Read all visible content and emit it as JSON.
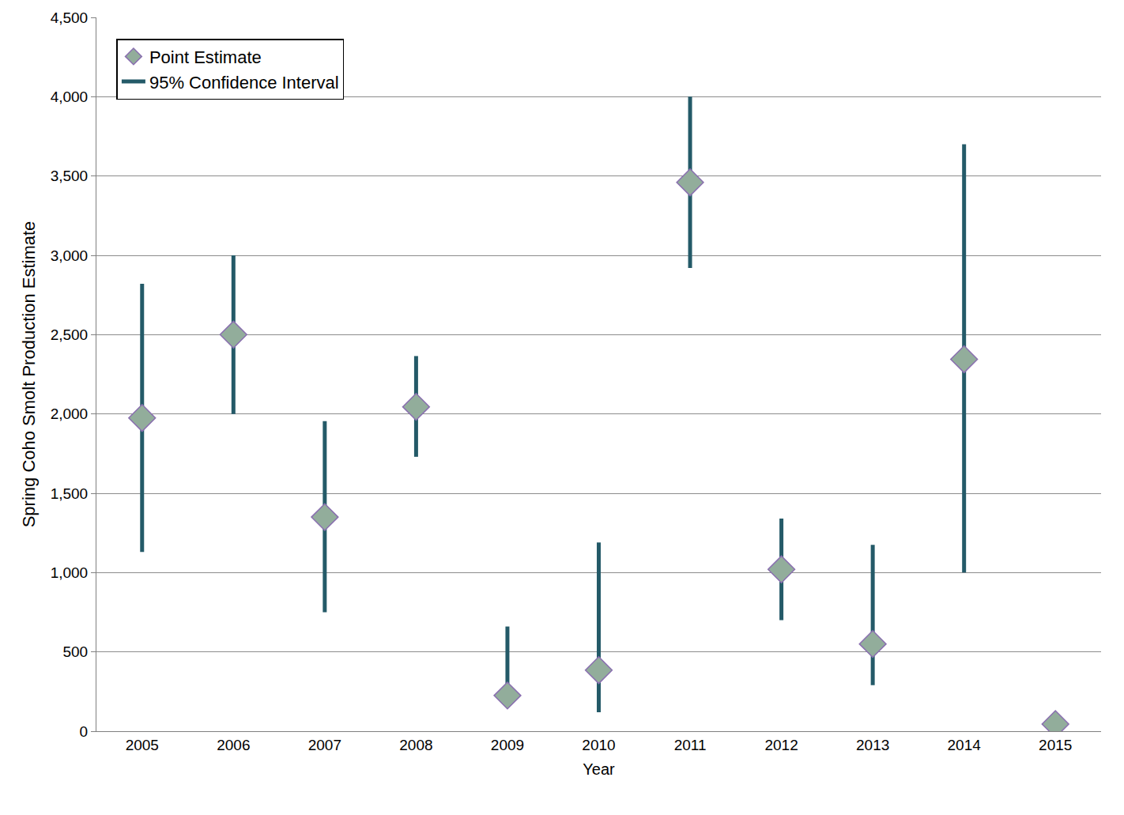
{
  "chart_data": {
    "type": "scatter",
    "x_label": "Year",
    "y_label": "Spring Coho Smolt Production Estimate",
    "categories": [
      "2005",
      "2006",
      "2007",
      "2008",
      "2009",
      "2010",
      "2011",
      "2012",
      "2013",
      "2014",
      "2015"
    ],
    "series": [
      {
        "name": "Point Estimate",
        "type": "scatter",
        "marker": "diamond",
        "color": "#92ad9b",
        "values": [
          1975,
          2500,
          1350,
          2045,
          225,
          385,
          3460,
          1020,
          550,
          2345,
          45
        ]
      }
    ],
    "confidence_interval": {
      "name": "95% Confidence Interval",
      "color": "#245a68",
      "low": [
        1130,
        2000,
        750,
        1730,
        225,
        120,
        2920,
        700,
        290,
        1000,
        null
      ],
      "high": [
        2820,
        3000,
        1955,
        2365,
        660,
        1190,
        4000,
        1340,
        1175,
        3700,
        null
      ]
    },
    "ylim": [
      0,
      4500
    ],
    "yticks": [
      0,
      500,
      {
        "value": 1000,
        "label": "1,000"
      },
      {
        "value": 1500,
        "label": "1,500"
      },
      {
        "value": 2000,
        "label": "2,000"
      },
      {
        "value": 2500,
        "label": "2,500"
      },
      {
        "value": 3000,
        "label": "3,000"
      },
      {
        "value": 3500,
        "label": "3,500"
      },
      {
        "value": 4000,
        "label": "4,000"
      },
      {
        "value": 4500,
        "label": "4,500"
      }
    ],
    "grid": true,
    "legend": "top-left"
  }
}
